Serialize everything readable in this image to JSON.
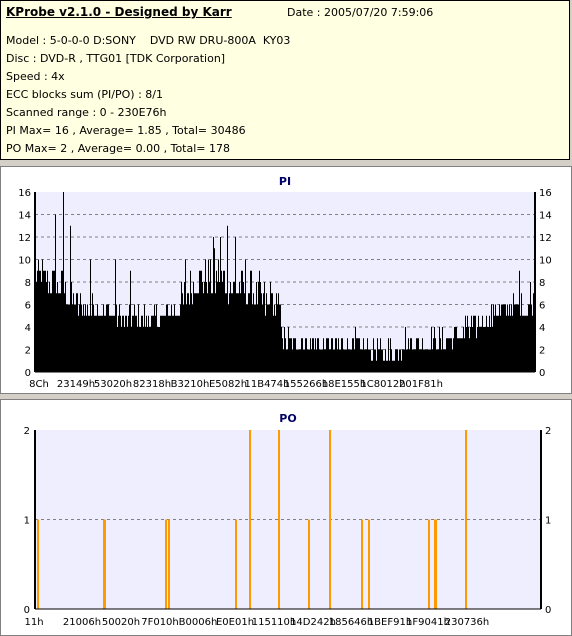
{
  "header": {
    "title": "KProbe v2.1.0 - Designed by Karr",
    "date": "Date : 2005/07/20 7:59:06",
    "lines": [
      "Model : 5-0-0-0 D:SONY    DVD RW DRU-800A  KY03",
      "Disc : DVD-R , TTG01 [TDK Corporation]",
      "Speed : 4x",
      "ECC blocks sum (PI/PO) : 8/1",
      "Scanned range : 0 - 230E76h",
      "PI Max= 16 , Average= 1.85 , Total= 30486",
      "PO Max= 2 , Average= 0.00 , Total= 178"
    ]
  },
  "colors": {
    "pi_bars": "#000000",
    "po_bars": "#ff9900",
    "plot_bg": "#eeeeff",
    "grid": "#808080",
    "info_bg": "#ffffe1"
  },
  "chart_data": [
    {
      "type": "bar",
      "title": "PI",
      "ylim": [
        0,
        16
      ],
      "yticks": [
        0,
        2,
        4,
        6,
        8,
        10,
        12,
        14,
        16
      ],
      "xlim": [
        0,
        1000
      ],
      "xtick_labels": [
        "8Ch",
        "23149h",
        "53020h",
        "82318h",
        "B3210h",
        "E5082h",
        "11B474h",
        "155266h",
        "18E155h",
        "1C8012h",
        "201F81h"
      ],
      "grid": true,
      "envelope": {
        "x": [
          0,
          30,
          60,
          90,
          130,
          170,
          210,
          250,
          290,
          330,
          370,
          400,
          430,
          460,
          490,
          496,
          530,
          570,
          610,
          650,
          690,
          720,
          750,
          790,
          830,
          870,
          910,
          950,
          980,
          1000
        ],
        "typical": [
          8,
          7,
          6,
          5,
          5,
          4,
          4,
          4,
          5,
          7,
          7,
          6,
          6,
          5,
          5,
          2,
          2,
          2,
          2,
          2,
          1,
          1,
          2,
          2,
          2,
          3,
          4,
          5,
          5,
          5
        ],
        "peak": [
          10,
          10,
          9,
          7,
          7,
          6,
          6,
          6,
          8,
          10,
          11,
          10,
          9,
          8,
          7,
          4,
          4,
          3,
          3,
          3,
          3,
          3,
          3,
          4,
          4,
          5,
          6,
          7,
          7,
          7
        ]
      },
      "spikes": [
        [
          40,
          14
        ],
        [
          55,
          16
        ],
        [
          70,
          13
        ],
        [
          110,
          10
        ],
        [
          160,
          10
        ],
        [
          190,
          9
        ],
        [
          300,
          10
        ],
        [
          355,
          12
        ],
        [
          370,
          12
        ],
        [
          383,
          13
        ],
        [
          400,
          12
        ],
        [
          420,
          10
        ],
        [
          447,
          9
        ],
        [
          470,
          8
        ],
        [
          640,
          4
        ],
        [
          740,
          4
        ],
        [
          860,
          5
        ],
        [
          920,
          6
        ],
        [
          968,
          9
        ],
        [
          990,
          8
        ]
      ]
    },
    {
      "type": "bar",
      "title": "PO",
      "ylim": [
        0,
        2
      ],
      "yticks": [
        0,
        1,
        2
      ],
      "xlim": [
        0,
        1000
      ],
      "xtick_labels": [
        "11h",
        "21006h",
        "50020h",
        "7F010h",
        "B0006h",
        "E0E01h",
        "115110h",
        "14D242h",
        "185646h",
        "1BEF91h",
        "1F9041h",
        "230736h"
      ],
      "grid": true,
      "x": [
        3,
        134,
        137,
        256,
        262,
        395,
        423,
        480,
        540,
        581,
        644,
        658,
        776,
        788,
        790,
        849
      ],
      "values": [
        1,
        1,
        1,
        1,
        1,
        1,
        2,
        2,
        1,
        2,
        1,
        1,
        1,
        1,
        1,
        2
      ]
    }
  ]
}
